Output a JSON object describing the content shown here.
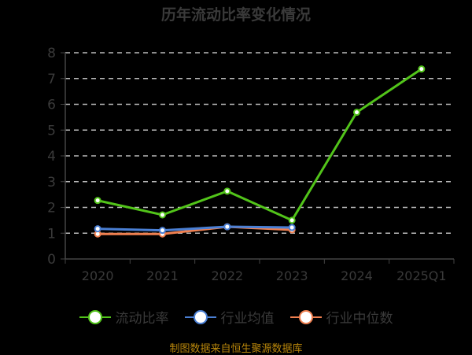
{
  "title": "历年流动比率变化情况",
  "footer": "制图数据来自恒生聚源数据库",
  "colors": {
    "current_ratio": "#52c41a",
    "industry_mean": "#4a7fd4",
    "industry_median": "#f08050",
    "grid": "#bbbbbb",
    "axis": "#444444",
    "text": "#3a3a3a",
    "footer": "#b8860b"
  },
  "legend": [
    {
      "label": "流动比率",
      "color": "#52c41a"
    },
    {
      "label": "行业均值",
      "color": "#4a7fd4"
    },
    {
      "label": "行业中位数",
      "color": "#f08050"
    }
  ],
  "chart_data": {
    "type": "line",
    "title": "历年流动比率变化情况",
    "categories": [
      "2020",
      "2021",
      "2022",
      "2023",
      "2024",
      "2025Q1"
    ],
    "series": [
      {
        "name": "流动比率",
        "values": [
          2.27,
          1.71,
          2.63,
          1.5,
          5.69,
          7.37
        ]
      },
      {
        "name": "行业均值",
        "values": [
          1.17,
          1.11,
          1.25,
          1.22,
          null,
          null
        ]
      },
      {
        "name": "行业中位数",
        "values": [
          0.97,
          0.97,
          1.25,
          1.13,
          null,
          null
        ]
      }
    ],
    "xlabel": "",
    "ylabel": "",
    "ylim": [
      0,
      8
    ],
    "yticks": [
      0,
      1,
      2,
      3,
      4,
      5,
      6,
      7,
      8
    ],
    "grid": true,
    "legend_position": "bottom"
  }
}
